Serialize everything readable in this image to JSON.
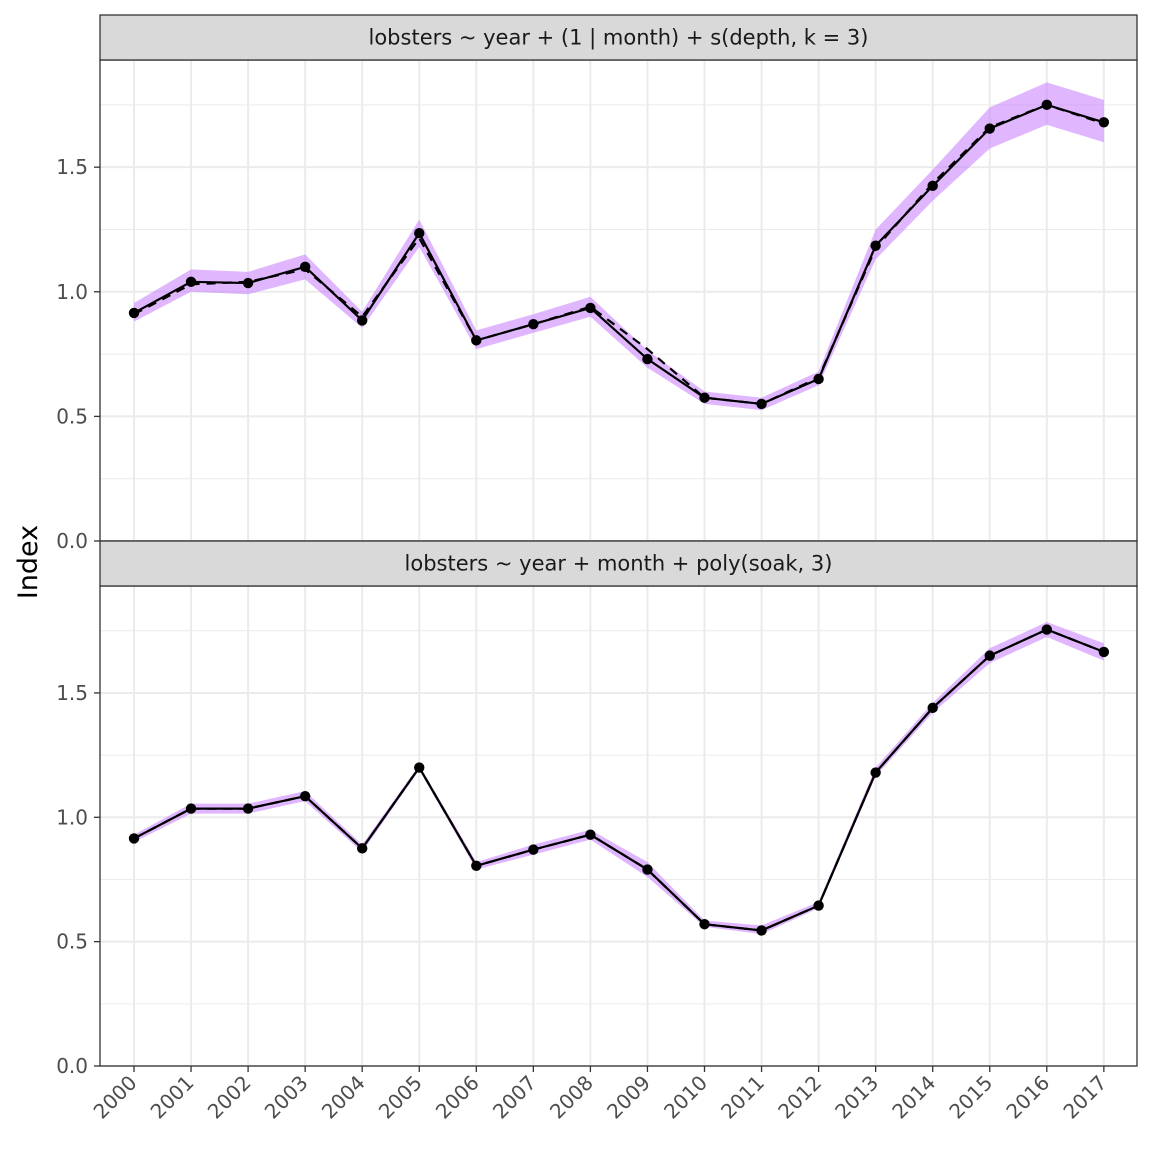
{
  "chart_data": {
    "type": "line",
    "ylabel": "Index",
    "xlabel": "",
    "x": [
      "2000",
      "2001",
      "2002",
      "2003",
      "2004",
      "2005",
      "2006",
      "2007",
      "2008",
      "2009",
      "2010",
      "2011",
      "2012",
      "2013",
      "2014",
      "2015",
      "2016",
      "2017"
    ],
    "y_ticks": [
      "0.0",
      "0.5",
      "1.0",
      "1.5"
    ],
    "ylim": [
      0,
      1.93
    ],
    "grid": true,
    "colors": {
      "ribbon": "#c77cff",
      "line": "#000000",
      "strip_fill": "#d9d9d9"
    },
    "panels": [
      {
        "title": "lobsters ~ year + (1 | month) + s(depth, k = 3)",
        "series": [
          {
            "style": "solid-with-points",
            "values": [
              0.915,
              1.04,
              1.035,
              1.1,
              0.885,
              1.235,
              0.805,
              0.87,
              0.935,
              0.73,
              0.575,
              0.55,
              0.65,
              1.185,
              1.425,
              1.655,
              1.75,
              1.68
            ],
            "lower": [
              0.88,
              1.0,
              0.99,
              1.05,
              0.855,
              1.18,
              0.77,
              0.835,
              0.9,
              0.695,
              0.55,
              0.525,
              0.625,
              1.13,
              1.365,
              1.575,
              1.67,
              1.6
            ],
            "upper": [
              0.955,
              1.09,
              1.08,
              1.15,
              0.92,
              1.29,
              0.845,
              0.91,
              0.98,
              0.765,
              0.6,
              0.575,
              0.68,
              1.25,
              1.49,
              1.74,
              1.84,
              1.77
            ]
          },
          {
            "style": "dashed",
            "values": [
              0.91,
              1.03,
              1.04,
              1.09,
              0.9,
              1.215,
              0.805,
              0.87,
              0.94,
              0.77,
              0.575,
              0.55,
              0.655,
              1.175,
              1.435,
              1.66,
              1.75,
              1.675
            ]
          }
        ]
      },
      {
        "title": "lobsters ~ year + month + poly(soak, 3)",
        "series": [
          {
            "style": "solid-with-points",
            "values": [
              0.915,
              1.035,
              1.035,
              1.085,
              0.875,
              1.2,
              0.805,
              0.87,
              0.93,
              0.79,
              0.57,
              0.545,
              0.645,
              1.18,
              1.44,
              1.65,
              1.755,
              1.665
            ],
            "lower": [
              0.9,
              1.015,
              1.015,
              1.065,
              0.86,
              1.19,
              0.79,
              0.85,
              0.91,
              0.76,
              0.56,
              0.53,
              0.635,
              1.165,
              1.42,
              1.62,
              1.725,
              1.63
            ],
            "upper": [
              0.93,
              1.055,
              1.055,
              1.105,
              0.89,
              1.21,
              0.82,
              0.89,
              0.95,
              0.82,
              0.585,
              0.565,
              0.66,
              1.2,
              1.46,
              1.68,
              1.785,
              1.7
            ]
          },
          {
            "style": "dashed",
            "values": [
              0.915,
              1.035,
              1.035,
              1.085,
              0.875,
              1.2,
              0.805,
              0.87,
              0.93,
              0.79,
              0.57,
              0.545,
              0.645,
              1.18,
              1.44,
              1.65,
              1.755,
              1.665
            ]
          }
        ]
      }
    ]
  }
}
